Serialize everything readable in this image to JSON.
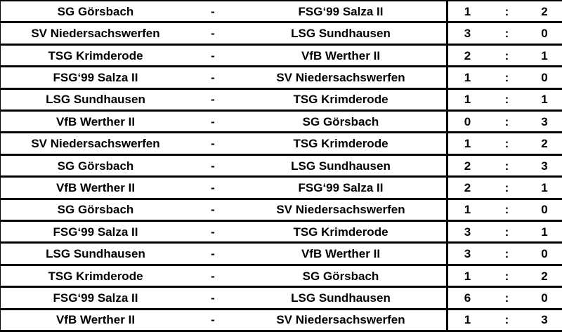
{
  "table": {
    "team_separator": "-",
    "score_separator": ":",
    "colors": {
      "background": "#ffffff",
      "text": "#000000",
      "border": "#000000"
    },
    "matches": [
      {
        "home": "SG Görsbach",
        "away": "FSG‘99 Salza II",
        "home_score": "1",
        "away_score": "2"
      },
      {
        "home": "SV Niedersachswerfen",
        "away": "LSG Sundhausen",
        "home_score": "3",
        "away_score": "0"
      },
      {
        "home": "TSG Krimderode",
        "away": "VfB Werther II",
        "home_score": "2",
        "away_score": "1"
      },
      {
        "home": "FSG‘99 Salza II",
        "away": "SV Niedersachswerfen",
        "home_score": "1",
        "away_score": "0"
      },
      {
        "home": "LSG Sundhausen",
        "away": "TSG Krimderode",
        "home_score": "1",
        "away_score": "1"
      },
      {
        "home": "VfB Werther II",
        "away": "SG Görsbach",
        "home_score": "0",
        "away_score": "3"
      },
      {
        "home": "SV Niedersachswerfen",
        "away": "TSG Krimderode",
        "home_score": "1",
        "away_score": "2"
      },
      {
        "home": "SG Görsbach",
        "away": "LSG Sundhausen",
        "home_score": "2",
        "away_score": "3"
      },
      {
        "home": "VfB Werther II",
        "away": "FSG‘99 Salza II",
        "home_score": "2",
        "away_score": "1"
      },
      {
        "home": "SG Görsbach",
        "away": "SV Niedersachswerfen",
        "home_score": "1",
        "away_score": "0"
      },
      {
        "home": "FSG‘99 Salza II",
        "away": "TSG Krimderode",
        "home_score": "3",
        "away_score": "1"
      },
      {
        "home": "LSG Sundhausen",
        "away": "VfB Werther II",
        "home_score": "3",
        "away_score": "0"
      },
      {
        "home": "TSG Krimderode",
        "away": "SG Görsbach",
        "home_score": "1",
        "away_score": "2"
      },
      {
        "home": "FSG‘99 Salza II",
        "away": "LSG Sundhausen",
        "home_score": "6",
        "away_score": "0"
      },
      {
        "home": "VfB Werther II",
        "away": "SV Niedersachswerfen",
        "home_score": "1",
        "away_score": "3"
      }
    ]
  }
}
